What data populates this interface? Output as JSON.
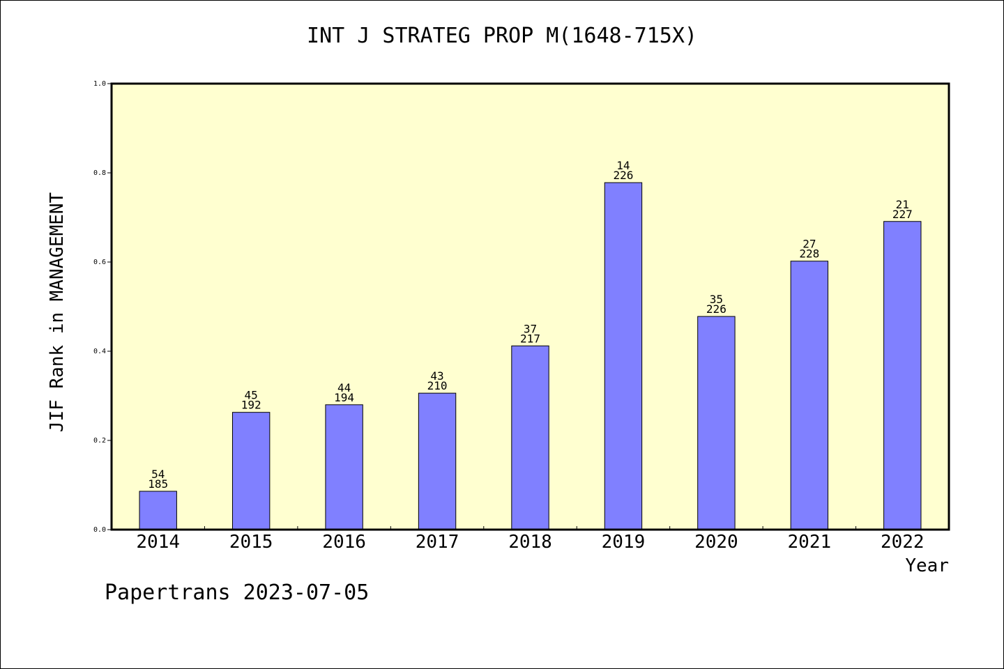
{
  "chart_data": {
    "type": "bar",
    "title": "INT J STRATEG PROP M(1648-715X)",
    "xlabel": "Year",
    "ylabel": "JIF Rank in MANAGEMENT",
    "ylim": [
      0,
      1.0
    ],
    "yticks": [
      "0.0",
      "0.2",
      "0.4",
      "0.6",
      "0.8",
      "1.0"
    ],
    "categories": [
      "2014",
      "2015",
      "2016",
      "2017",
      "2018",
      "2019",
      "2020",
      "2021",
      "2022"
    ],
    "values": [
      0.086,
      0.263,
      0.28,
      0.306,
      0.412,
      0.778,
      0.478,
      0.602,
      0.691
    ],
    "bar_labels": [
      {
        "rank": "54",
        "total": "185"
      },
      {
        "rank": "45",
        "total": "192"
      },
      {
        "rank": "44",
        "total": "194"
      },
      {
        "rank": "43",
        "total": "210"
      },
      {
        "rank": "37",
        "total": "217"
      },
      {
        "rank": "14",
        "total": "226"
      },
      {
        "rank": "35",
        "total": "226"
      },
      {
        "rank": "27",
        "total": "228"
      },
      {
        "rank": "21",
        "total": "227"
      }
    ],
    "grid": false,
    "colors": {
      "plot_background": "#ffffd0",
      "bar_fill": "#8080ff",
      "bar_stroke": "#000000"
    }
  },
  "footer": "Papertrans 2023-07-05"
}
